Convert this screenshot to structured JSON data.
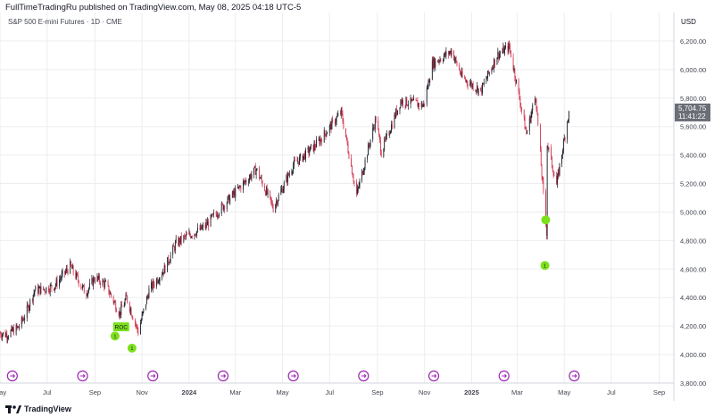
{
  "publisher_line": "FullTimeTradingRu published on TradingView.com, May 08, 2025 04:18 UTC-5",
  "symbol_line": "S&P 500 E-mini Futures · 1D · CME",
  "currency": "USD",
  "price_badge": {
    "price": "5,704.75",
    "countdown": "11:41:22",
    "bg": "#6b6e76"
  },
  "footer_brand": "TradingView",
  "colors": {
    "up": "#131722",
    "down": "#d1304a",
    "marker": "#7ce01c",
    "event": "#9c27b0",
    "grid": "#ecedf0"
  },
  "chart_data": {
    "type": "candlestick",
    "x_range": [
      "2023-05-01",
      "2025-09-20"
    ],
    "ylim": [
      3800,
      6400
    ],
    "y_ticks": [
      3800,
      4000,
      4200,
      4400,
      4600,
      4800,
      5000,
      5200,
      5400,
      5600,
      5800,
      6000,
      6200
    ],
    "y_tick_labels": [
      "3,800.00",
      "4,000.00",
      "4,200.00",
      "4,400.00",
      "4,600.00",
      "4,800.00",
      "5,000.00",
      "5,200.00",
      "5,400.00",
      "5,600.00",
      "5,800.00",
      "6,000.00",
      "6,200.00"
    ],
    "x_ticks": [
      {
        "date": "2023-05-01",
        "label": "May",
        "bold": false
      },
      {
        "date": "2023-07-01",
        "label": "Jul",
        "bold": false
      },
      {
        "date": "2023-09-01",
        "label": "Sep",
        "bold": false
      },
      {
        "date": "2023-11-01",
        "label": "Nov",
        "bold": false
      },
      {
        "date": "2024-01-01",
        "label": "2024",
        "bold": true
      },
      {
        "date": "2024-03-01",
        "label": "Mar",
        "bold": false
      },
      {
        "date": "2024-05-01",
        "label": "May",
        "bold": false
      },
      {
        "date": "2024-07-01",
        "label": "Jul",
        "bold": false
      },
      {
        "date": "2024-09-01",
        "label": "Sep",
        "bold": false
      },
      {
        "date": "2024-11-01",
        "label": "Nov",
        "bold": false
      },
      {
        "date": "2025-01-01",
        "label": "2025",
        "bold": true
      },
      {
        "date": "2025-03-01",
        "label": "Mar",
        "bold": false
      },
      {
        "date": "2025-05-01",
        "label": "May",
        "bold": false
      },
      {
        "date": "2025-07-01",
        "label": "Jul",
        "bold": false
      },
      {
        "date": "2025-09-01",
        "label": "Sep",
        "bold": false
      }
    ],
    "price_path": [
      [
        "2023-05-01",
        4150
      ],
      [
        "2023-05-10",
        4140
      ],
      [
        "2023-05-25",
        4190
      ],
      [
        "2023-06-01",
        4260
      ],
      [
        "2023-06-15",
        4450
      ],
      [
        "2023-06-28",
        4460
      ],
      [
        "2023-07-10",
        4480
      ],
      [
        "2023-07-31",
        4620
      ],
      [
        "2023-08-20",
        4430
      ],
      [
        "2023-09-01",
        4540
      ],
      [
        "2023-09-15",
        4490
      ],
      [
        "2023-10-03",
        4290
      ],
      [
        "2023-10-12",
        4400
      ],
      [
        "2023-10-27",
        4160
      ],
      [
        "2023-11-10",
        4450
      ],
      [
        "2023-11-30",
        4600
      ],
      [
        "2023-12-15",
        4780
      ],
      [
        "2023-12-29",
        4830
      ],
      [
        "2024-01-20",
        4890
      ],
      [
        "2024-02-15",
        5050
      ],
      [
        "2024-03-28",
        5300
      ],
      [
        "2024-04-19",
        5030
      ],
      [
        "2024-05-15",
        5330
      ],
      [
        "2024-06-15",
        5480
      ],
      [
        "2024-07-16",
        5700
      ],
      [
        "2024-08-05",
        5120
      ],
      [
        "2024-08-30",
        5660
      ],
      [
        "2024-09-06",
        5420
      ],
      [
        "2024-10-01",
        5780
      ],
      [
        "2024-10-31",
        5750
      ],
      [
        "2024-11-11",
        6040
      ],
      [
        "2024-12-06",
        6130
      ],
      [
        "2024-12-20",
        5940
      ],
      [
        "2025-01-13",
        5850
      ],
      [
        "2025-02-03",
        6100
      ],
      [
        "2025-02-19",
        6160
      ],
      [
        "2025-03-13",
        5550
      ],
      [
        "2025-03-25",
        5820
      ],
      [
        "2025-04-04",
        5120
      ],
      [
        "2025-04-08",
        4860
      ],
      [
        "2025-04-09",
        5480
      ],
      [
        "2025-04-21",
        5190
      ],
      [
        "2025-05-07",
        5704.75
      ]
    ],
    "markers": [
      {
        "date": "2023-10-05",
        "price": 4195,
        "label": "ROC",
        "shape": "tag"
      },
      {
        "date": "2023-09-27",
        "price": 4130,
        "label": "1",
        "shape": "circle"
      },
      {
        "date": "2023-10-19",
        "price": 4045,
        "label": "1",
        "shape": "circle"
      },
      {
        "date": "2025-04-07",
        "price": 4945,
        "label": "",
        "shape": "circle"
      },
      {
        "date": "2025-04-06",
        "price": 4625,
        "label": "1",
        "shape": "circle"
      }
    ],
    "events": [
      "2023-05-17",
      "2023-08-16",
      "2023-11-15",
      "2024-02-14",
      "2024-05-15",
      "2024-08-14",
      "2024-11-13",
      "2025-02-12",
      "2025-05-14"
    ]
  }
}
